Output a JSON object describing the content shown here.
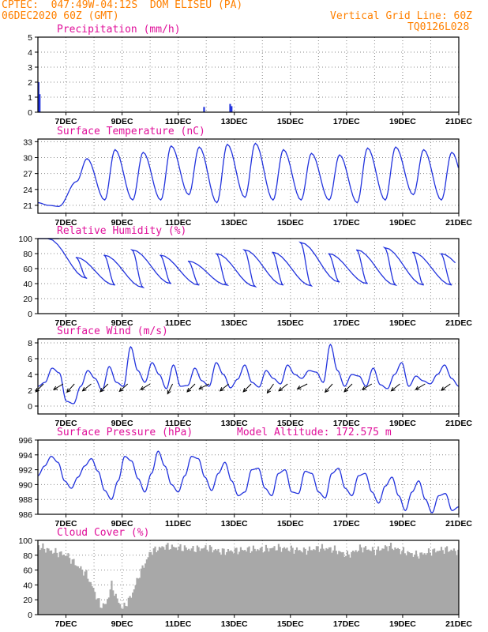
{
  "header": {
    "source": "CPTEC:",
    "coords": "047:49W-04:12S",
    "station": "DOM ELISEU (PA)",
    "run": "06DEC2020 60Z (GMT)",
    "grid_note": "Vertical Grid Line: 60Z",
    "code": "TQ0126L028"
  },
  "colors": {
    "header": "#ff8000",
    "title": "#e0109a",
    "line": "#2233dd",
    "cloud": "#a8a8a8",
    "arrow": "#000000"
  },
  "model_altitude": "Model Altitude: 172.575 m",
  "x_ticks": [
    "7DEC",
    "9DEC",
    "11DEC",
    "13DEC",
    "15DEC",
    "17DEC",
    "19DEC",
    "21DEC"
  ],
  "chart_data": [
    {
      "type": "bar",
      "title": "Precipitation (mm/h)",
      "ylim": [
        0,
        5
      ],
      "yticks": [
        "0",
        "1",
        "2",
        "3",
        "4",
        "5"
      ],
      "x_ticks": [
        "7DEC",
        "9DEC",
        "11DEC",
        "13DEC",
        "15DEC",
        "17DEC",
        "19DEC",
        "21DEC"
      ],
      "bars": [
        {
          "x": 6.02,
          "value": 2.0
        },
        {
          "x": 6.06,
          "value": 1.2
        },
        {
          "x": 11.92,
          "value": 0.35
        },
        {
          "x": 12.85,
          "value": 0.55
        },
        {
          "x": 12.9,
          "value": 0.4
        }
      ]
    },
    {
      "type": "line",
      "title": "Surface Temperature (nC)",
      "ylim": [
        19.5,
        33.5
      ],
      "yticks": [
        "21",
        "24",
        "27",
        "30",
        "33"
      ],
      "x_ticks": [
        "7DEC",
        "9DEC",
        "11DEC",
        "13DEC",
        "15DEC",
        "17DEC",
        "19DEC",
        "21DEC"
      ],
      "base_min": 21.0,
      "daily_max": [
        20.8,
        29.8,
        31.5,
        31.0,
        32.2,
        32.0,
        32.5,
        32.7,
        31.5,
        30.8,
        30.5,
        31.8,
        32.0,
        31.5,
        31.0,
        31.5
      ],
      "daily_min": [
        21.0,
        25.5,
        22.0,
        22.0,
        22.0,
        23.0,
        21.5,
        22.5,
        22.0,
        22.0,
        22.0,
        21.5,
        22.0,
        23.0,
        22.0,
        21.5
      ]
    },
    {
      "type": "line",
      "title": "Relative Humidity (%)",
      "ylim": [
        0,
        100
      ],
      "yticks": [
        "0",
        "20",
        "40",
        "60",
        "80",
        "100"
      ],
      "x_ticks": [
        "7DEC",
        "9DEC",
        "11DEC",
        "13DEC",
        "15DEC",
        "17DEC",
        "19DEC",
        "21DEC"
      ],
      "daily_max": [
        100,
        75,
        78,
        85,
        78,
        70,
        80,
        85,
        82,
        95,
        80,
        85,
        88,
        82,
        80,
        75
      ],
      "daily_min": [
        100,
        47,
        38,
        35,
        40,
        38,
        38,
        36,
        38,
        37,
        42,
        40,
        38,
        38,
        38,
        40
      ]
    },
    {
      "type": "line",
      "title": "Surface Wind (m/s)",
      "ylim": [
        -1,
        8.5
      ],
      "yticks": [
        "0",
        "2",
        "4",
        "6",
        "8"
      ],
      "x_ticks": [
        "7DEC",
        "9DEC",
        "11DEC",
        "13DEC",
        "15DEC",
        "17DEC",
        "19DEC",
        "21DEC"
      ],
      "wind_speed": [
        2.5,
        3.0,
        4.8,
        4.2,
        0.6,
        0.3,
        2.5,
        4.5,
        3.5,
        2.0,
        5.0,
        3.0,
        2.5,
        7.5,
        4.5,
        3.0,
        5.5,
        4.0,
        2.2,
        5.2,
        2.5,
        2.6,
        4.8,
        3.2,
        2.5,
        5.5,
        4.0,
        2.3,
        3.4,
        5.2,
        3.0,
        2.4,
        4.5,
        3.5,
        2.8,
        5.2,
        4.0,
        3.5,
        4.5,
        4.3,
        3.0,
        7.8,
        4.5,
        2.5,
        4.0,
        3.8,
        2.5,
        4.8,
        2.7,
        2.2,
        4.0,
        5.5,
        2.5,
        3.8,
        3.2,
        2.8,
        4.0,
        5.2,
        3.5,
        2.5
      ],
      "wind_arrows": [
        {
          "x": 6.2,
          "dx": -1,
          "dy": 1
        },
        {
          "x": 6.9,
          "dx": -1,
          "dy": 0.6
        },
        {
          "x": 7.3,
          "dx": -0.9,
          "dy": 1
        },
        {
          "x": 7.9,
          "dx": -1,
          "dy": 0.8
        },
        {
          "x": 8.5,
          "dx": -1,
          "dy": 1
        },
        {
          "x": 9.2,
          "dx": -1,
          "dy": 0.9
        },
        {
          "x": 10.0,
          "dx": -1,
          "dy": 0.6
        },
        {
          "x": 10.8,
          "dx": -0.5,
          "dy": 1
        },
        {
          "x": 11.6,
          "dx": -1,
          "dy": 1
        },
        {
          "x": 12.1,
          "dx": -1,
          "dy": 0.5
        },
        {
          "x": 12.8,
          "dx": -1,
          "dy": 0.8
        },
        {
          "x": 13.6,
          "dx": -1,
          "dy": 1
        },
        {
          "x": 14.4,
          "dx": -0.7,
          "dy": 1
        },
        {
          "x": 14.9,
          "dx": -1,
          "dy": 0.8
        },
        {
          "x": 15.6,
          "dx": -1,
          "dy": 0.5
        },
        {
          "x": 16.5,
          "dx": -0.9,
          "dy": 1
        },
        {
          "x": 17.2,
          "dx": -1,
          "dy": 1
        },
        {
          "x": 17.9,
          "dx": -1,
          "dy": 0.6
        },
        {
          "x": 18.9,
          "dx": -1,
          "dy": 0.8
        },
        {
          "x": 19.8,
          "dx": -1,
          "dy": 0.6
        },
        {
          "x": 20.7,
          "dx": -1,
          "dy": 0.7
        }
      ]
    },
    {
      "type": "line",
      "title": "Surface Pressure (hPa)",
      "ylim": [
        986,
        996
      ],
      "yticks": [
        "986",
        "988",
        "990",
        "992",
        "994",
        "996"
      ],
      "x_ticks": [
        "7DEC",
        "9DEC",
        "11DEC",
        "13DEC",
        "15DEC",
        "17DEC",
        "19DEC",
        "21DEC"
      ],
      "pressure": [
        991.2,
        992.5,
        993.8,
        993.0,
        990.5,
        989.5,
        991.0,
        992.5,
        993.5,
        991.8,
        989.2,
        988.0,
        990.5,
        993.8,
        993.2,
        990.8,
        989.0,
        991.5,
        994.5,
        992.5,
        990.0,
        989.0,
        991.2,
        993.8,
        993.5,
        991.0,
        989.2,
        991.5,
        993.0,
        990.5,
        988.5,
        989.0,
        992.0,
        992.2,
        989.5,
        988.5,
        991.5,
        992.0,
        989.0,
        988.8,
        991.8,
        991.5,
        989.0,
        988.2,
        991.5,
        992.2,
        989.5,
        988.5,
        991.2,
        991.5,
        989.0,
        987.5,
        989.8,
        991.0,
        988.5,
        986.5,
        989.0,
        990.5,
        988.0,
        986.2,
        988.5,
        988.8,
        986.5,
        987.0
      ]
    },
    {
      "type": "area",
      "title": "Cloud Cover (%)",
      "ylim": [
        0,
        100
      ],
      "yticks": [
        "0",
        "20",
        "40",
        "60",
        "80",
        "100"
      ],
      "x_ticks": [
        "7DEC",
        "9DEC",
        "11DEC",
        "13DEC",
        "15DEC",
        "17DEC",
        "19DEC",
        "21DEC"
      ],
      "cloud_x": [
        6.0,
        6.5,
        7.0,
        7.4,
        7.7,
        8.0,
        8.2,
        8.4,
        8.6,
        8.8,
        9.0,
        9.3,
        9.6,
        10.0,
        10.5,
        11.0,
        11.5,
        12.0,
        12.5,
        13.0,
        13.5,
        14.0,
        14.5,
        15.0,
        15.5,
        16.0,
        16.5,
        17.0,
        17.5,
        18.0,
        18.5,
        19.0,
        19.5,
        20.0,
        20.5,
        21.0
      ],
      "cloud_values": [
        92,
        85,
        80,
        65,
        55,
        30,
        12,
        14,
        40,
        20,
        8,
        25,
        55,
        85,
        92,
        90,
        88,
        90,
        85,
        86,
        88,
        88,
        90,
        88,
        86,
        90,
        88,
        80,
        90,
        86,
        92,
        85,
        80,
        85,
        88,
        85
      ]
    }
  ]
}
